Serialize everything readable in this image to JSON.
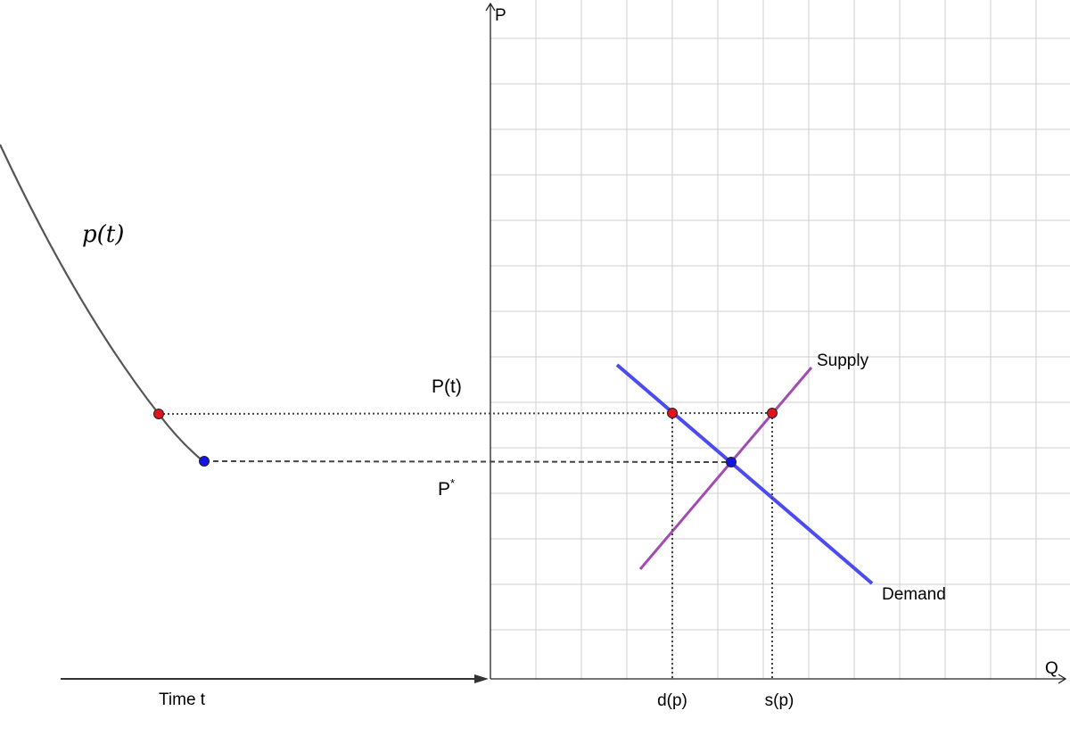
{
  "axes": {
    "y_label": "P",
    "x_label": "Q",
    "time_label": "Time t"
  },
  "curve": {
    "label": "p(t)",
    "color": "#555555"
  },
  "lines": {
    "supply_label": "Supply",
    "supply_color": "#a24bb2",
    "demand_label": "Demand",
    "demand_color": "#4b4bf0"
  },
  "markers": {
    "pt_label": "P(t)",
    "pstar_base": "P",
    "pstar_sup": "*",
    "dp_label": "d(p)",
    "sp_label": "s(p)",
    "current_color": "#e0141e",
    "equilibrium_color": "#1414e6"
  }
}
